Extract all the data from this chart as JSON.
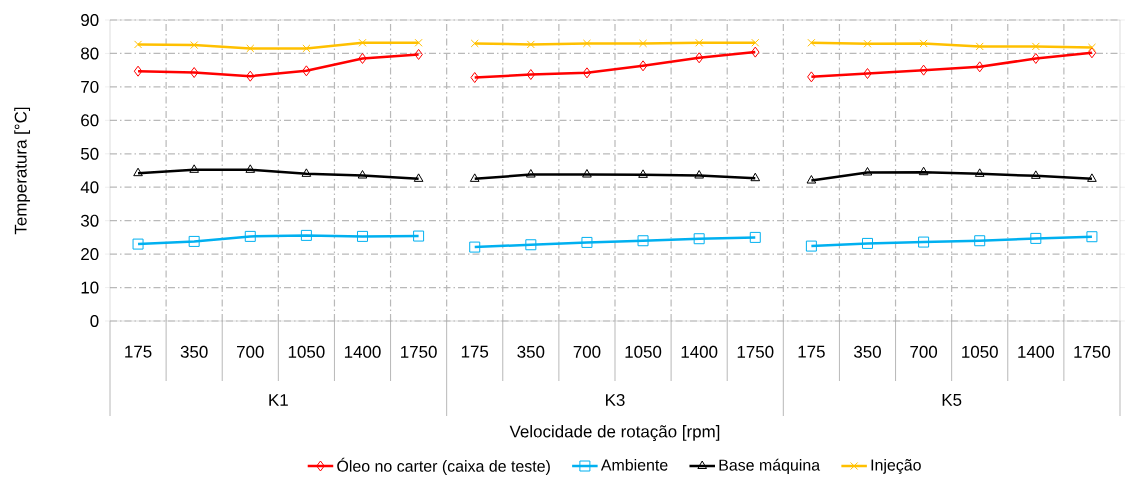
{
  "chart_data": {
    "type": "line",
    "xlabel": "Velocidade de rotação [rpm]",
    "ylabel": "Temperatura [°C]",
    "categories": [
      "175",
      "350",
      "700",
      "1050",
      "1400",
      "1750",
      "175",
      "350",
      "700",
      "1050",
      "1400",
      "1750",
      "175",
      "350",
      "700",
      "1050",
      "1400",
      "1750"
    ],
    "annotations": [
      "K1",
      "K3",
      "K5"
    ],
    "ylim": [
      0,
      90
    ],
    "yticks": [
      0,
      10,
      20,
      30,
      40,
      50,
      60,
      70,
      80,
      90
    ],
    "grid": true,
    "legend": "bottom",
    "series": [
      {
        "name": "Óleo no carter (caixa de teste)",
        "color": "#ff0000",
        "marker": "diamond",
        "values": [
          74.7,
          74.3,
          73.2,
          74.8,
          78.5,
          79.7,
          72.8,
          73.7,
          74.2,
          76.3,
          78.7,
          80.4,
          73,
          74,
          75,
          76,
          78.5,
          80.2
        ]
      },
      {
        "name": "Ambiente",
        "color": "#00b0f0",
        "marker": "square",
        "values": [
          23,
          23.8,
          25.3,
          25.6,
          25.3,
          25.4,
          22.1,
          22.8,
          23.5,
          24,
          24.6,
          25,
          22.4,
          23.2,
          23.6,
          24,
          24.7,
          25.2
        ]
      },
      {
        "name": "Base máquina",
        "color": "#000000",
        "marker": "triangle",
        "values": [
          44.2,
          45.2,
          45.2,
          44,
          43.5,
          42.5,
          42.5,
          43.8,
          43.8,
          43.7,
          43.5,
          42.7,
          42,
          44.4,
          44.5,
          44,
          43.4,
          42.5
        ]
      },
      {
        "name": "Injeção",
        "color": "#ffc000",
        "marker": "cross",
        "values": [
          82.7,
          82.5,
          81.5,
          81.5,
          83.2,
          83.2,
          83,
          82.7,
          83,
          83,
          83.2,
          83.2,
          83.2,
          82.9,
          83,
          82.1,
          82.1,
          81.8
        ]
      }
    ]
  }
}
